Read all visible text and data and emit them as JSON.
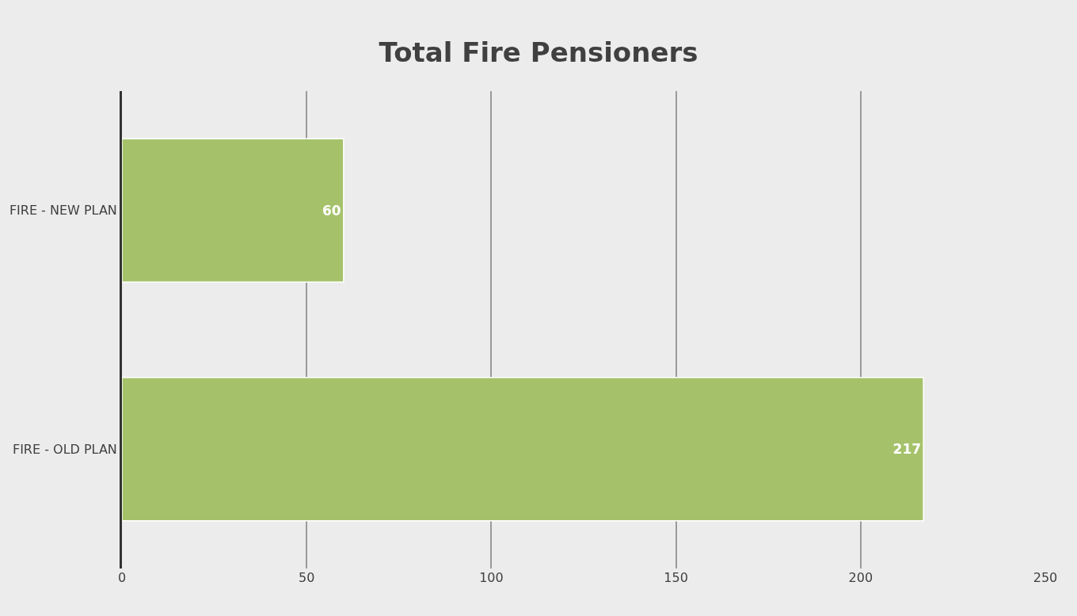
{
  "chart_data": {
    "type": "bar",
    "orientation": "horizontal",
    "title": "Total Fire Pensioners",
    "categories": [
      "FIRE - NEW PLAN",
      "FIRE - OLD PLAN"
    ],
    "values": [
      60,
      217
    ],
    "color": "#a5c26b",
    "xlim": [
      0,
      250
    ],
    "xticks": [
      0,
      50,
      100,
      150,
      200,
      250
    ],
    "grid": "x",
    "data_labels": true
  }
}
